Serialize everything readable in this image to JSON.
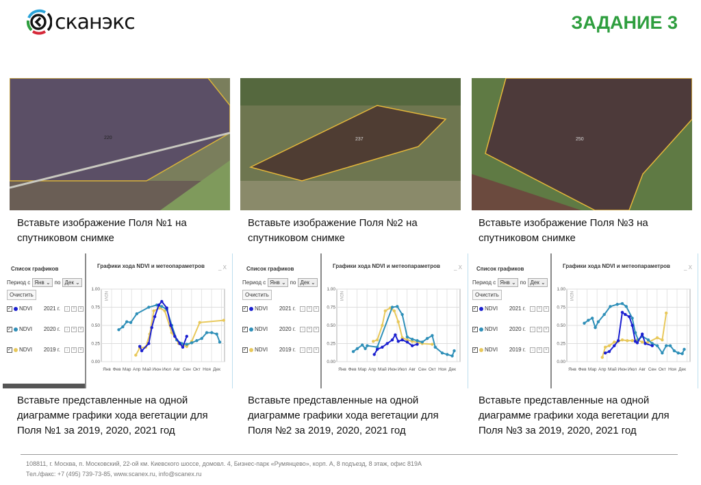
{
  "header": {
    "logo_text": "сканэкс",
    "title": "ЗАДАНИЕ 3"
  },
  "fields": [
    {
      "label": "220",
      "caption": "Вставьте изображение Поля №1 на спутниковом снимке",
      "chart_caption": "Вставьте представленные на одной диаграмме графики хода вегетации для Поля №1 за 2019, 2020, 2021 год"
    },
    {
      "label": "237",
      "caption": "Вставьте изображение Поля №2 на спутниковом снимке",
      "chart_caption": "Вставьте представленные на одной диаграмме графики хода вегетации для Поля №2 за 2019, 2020, 2021 год"
    },
    {
      "label": "250",
      "caption": "Вставьте изображение Поля №3 на спутниковом снимке",
      "chart_caption": "Вставьте представленные на одной диаграмме графики хода вегетации для Поля №3 за 2019, 2020, 2021 год"
    }
  ],
  "widget": {
    "list_title": "Список графиков",
    "period_from": "Период с",
    "from_value": "Янв",
    "to_label": "по",
    "to_value": "Дек",
    "clear_button": "Очистить",
    "chart_title": "Графики хода NDVI и метеопараметров",
    "minimize": "_",
    "close": "X",
    "rows": [
      {
        "name": "NDVI",
        "year": "2021 г.",
        "color": "#1a1fd0"
      },
      {
        "name": "NDVI",
        "year": "2020 г.",
        "color": "#2e8fb8"
      },
      {
        "name": "NDVI",
        "year": "2019 г.",
        "color": "#e8c85a"
      }
    ]
  },
  "chart_data": [
    {
      "type": "line",
      "title": "Графики хода NDVI и метеопараметров",
      "ylabel": "NDVI",
      "ylim": [
        0,
        1
      ],
      "yticks": [
        "0.00",
        "0.25",
        "0.50",
        "0.75",
        "1.00"
      ],
      "categories": [
        "Янв",
        "Фев",
        "Мар",
        "Апр",
        "Май",
        "Июн",
        "Июл",
        "Авг",
        "Сен",
        "Окт",
        "Ноя",
        "Дек"
      ],
      "series": [
        {
          "name": "2021",
          "color": "#1a1fd0",
          "points": [
            [
              3.3,
              0.21
            ],
            [
              3.5,
              0.15
            ],
            [
              4.2,
              0.25
            ],
            [
              4.5,
              0.47
            ],
            [
              4.8,
              0.62
            ],
            [
              5.2,
              0.78
            ],
            [
              5.5,
              0.83
            ],
            [
              6,
              0.74
            ],
            [
              6.4,
              0.5
            ],
            [
              6.8,
              0.35
            ],
            [
              7.3,
              0.25
            ],
            [
              7.6,
              0.2
            ],
            [
              8.0,
              0.35
            ]
          ]
        },
        {
          "name": "2020",
          "color": "#2e8fb8",
          "points": [
            [
              1.2,
              0.44
            ],
            [
              1.6,
              0.48
            ],
            [
              2.0,
              0.55
            ],
            [
              2.4,
              0.54
            ],
            [
              3.0,
              0.66
            ],
            [
              4.2,
              0.75
            ],
            [
              5.0,
              0.78
            ],
            [
              5.5,
              0.76
            ],
            [
              6.0,
              0.72
            ],
            [
              6.5,
              0.5
            ],
            [
              7,
              0.3
            ],
            [
              7.5,
              0.25
            ],
            [
              8,
              0.24
            ],
            [
              8.5,
              0.26
            ],
            [
              9,
              0.29
            ],
            [
              9.5,
              0.32
            ],
            [
              10,
              0.4
            ],
            [
              10.5,
              0.4
            ],
            [
              11,
              0.38
            ],
            [
              11.3,
              0.27
            ]
          ]
        },
        {
          "name": "2019",
          "color": "#e8c85a",
          "points": [
            [
              2.9,
              0.09
            ],
            [
              3.3,
              0.19
            ],
            [
              3.9,
              0.2
            ],
            [
              4.3,
              0.38
            ],
            [
              4.7,
              0.7
            ],
            [
              5.3,
              0.74
            ],
            [
              5.8,
              0.7
            ],
            [
              6.5,
              0.4
            ],
            [
              7.2,
              0.25
            ],
            [
              8,
              0.21
            ],
            [
              8.5,
              0.28
            ],
            [
              9.3,
              0.54
            ],
            [
              11.7,
              0.57
            ]
          ]
        }
      ]
    },
    {
      "type": "line",
      "title": "Графики хода NDVI и метеопараметров",
      "ylabel": "NDVI",
      "ylim": [
        0,
        1
      ],
      "yticks": [
        "0.00",
        "0.25",
        "0.50",
        "0.75",
        "1.00"
      ],
      "categories": [
        "Янв",
        "Фев",
        "Мар",
        "Апр",
        "Май",
        "Июн",
        "Июл",
        "Авг",
        "Сен",
        "Окт",
        "Ноя",
        "Дек"
      ],
      "series": [
        {
          "name": "2021",
          "color": "#1a1fd0",
          "points": [
            [
              3.2,
              0.1
            ],
            [
              3.5,
              0.17
            ],
            [
              4,
              0.2
            ],
            [
              4.5,
              0.25
            ],
            [
              5,
              0.3
            ],
            [
              5.3,
              0.37
            ],
            [
              5.6,
              0.28
            ],
            [
              6,
              0.3
            ],
            [
              6.5,
              0.27
            ],
            [
              7,
              0.22
            ],
            [
              7.5,
              0.24
            ]
          ]
        },
        {
          "name": "2020",
          "color": "#2e8fb8",
          "points": [
            [
              1.1,
              0.14
            ],
            [
              1.5,
              0.18
            ],
            [
              2,
              0.23
            ],
            [
              2.3,
              0.18
            ],
            [
              2.5,
              0.22
            ],
            [
              3.5,
              0.2
            ],
            [
              5.0,
              0.75
            ],
            [
              5.5,
              0.76
            ],
            [
              6,
              0.65
            ],
            [
              6.5,
              0.34
            ],
            [
              7,
              0.31
            ],
            [
              7.5,
              0.29
            ],
            [
              8,
              0.27
            ],
            [
              8.5,
              0.32
            ],
            [
              9,
              0.36
            ],
            [
              9.3,
              0.2
            ],
            [
              10,
              0.12
            ],
            [
              10.5,
              0.1
            ],
            [
              11,
              0.08
            ],
            [
              11.2,
              0.15
            ]
          ]
        },
        {
          "name": "2019",
          "color": "#e8c85a",
          "points": [
            [
              3.1,
              0.28
            ],
            [
              3.5,
              0.3
            ],
            [
              4,
              0.5
            ],
            [
              4.3,
              0.7
            ],
            [
              4.8,
              0.74
            ],
            [
              5.2,
              0.7
            ],
            [
              5.6,
              0.55
            ],
            [
              6,
              0.33
            ],
            [
              6.5,
              0.3
            ],
            [
              7,
              0.28
            ],
            [
              8,
              0.25
            ],
            [
              9,
              0.24
            ]
          ]
        }
      ]
    },
    {
      "type": "line",
      "title": "Графики хода NDVI и метеопараметров",
      "ylabel": "NDVI",
      "ylim": [
        0,
        1
      ],
      "yticks": [
        "0.00",
        "0.25",
        "0.50",
        "0.75",
        "1.00"
      ],
      "categories": [
        "Янв",
        "Фев",
        "Мар",
        "Апр",
        "Май",
        "Июн",
        "Июл",
        "Авг",
        "Сен",
        "Окт",
        "Ноя",
        "Дек"
      ],
      "series": [
        {
          "name": "2021",
          "color": "#1a1fd0",
          "points": [
            [
              3.3,
              0.12
            ],
            [
              3.7,
              0.14
            ],
            [
              4.2,
              0.22
            ],
            [
              4.6,
              0.29
            ],
            [
              5.0,
              0.68
            ],
            [
              5.3,
              0.65
            ],
            [
              5.7,
              0.62
            ],
            [
              6,
              0.5
            ],
            [
              6.3,
              0.28
            ],
            [
              6.5,
              0.26
            ],
            [
              7,
              0.38
            ],
            [
              7.3,
              0.25
            ],
            [
              8,
              0.22
            ]
          ]
        },
        {
          "name": "2020",
          "color": "#2e8fb8",
          "points": [
            [
              1.2,
              0.53
            ],
            [
              1.6,
              0.57
            ],
            [
              2,
              0.6
            ],
            [
              2.3,
              0.47
            ],
            [
              2.6,
              0.55
            ],
            [
              3.2,
              0.65
            ],
            [
              3.8,
              0.76
            ],
            [
              4.5,
              0.79
            ],
            [
              5,
              0.8
            ],
            [
              5.4,
              0.76
            ],
            [
              6,
              0.6
            ],
            [
              6.3,
              0.4
            ],
            [
              6.6,
              0.3
            ],
            [
              7,
              0.35
            ],
            [
              7.6,
              0.3
            ],
            [
              8,
              0.25
            ],
            [
              8.5,
              0.22
            ],
            [
              9,
              0.12
            ],
            [
              9.4,
              0.22
            ],
            [
              9.8,
              0.22
            ],
            [
              10.2,
              0.15
            ],
            [
              10.6,
              0.12
            ],
            [
              11,
              0.11
            ],
            [
              11.2,
              0.17
            ]
          ]
        },
        {
          "name": "2019",
          "color": "#e8c85a",
          "points": [
            [
              3.0,
              0.06
            ],
            [
              3.3,
              0.2
            ],
            [
              3.7,
              0.22
            ],
            [
              4.2,
              0.27
            ],
            [
              4.6,
              0.28
            ],
            [
              5,
              0.3
            ],
            [
              5.5,
              0.29
            ],
            [
              6,
              0.29
            ],
            [
              6.5,
              0.3
            ],
            [
              7,
              0.27
            ],
            [
              7.5,
              0.26
            ],
            [
              8.5,
              0.33
            ],
            [
              9,
              0.3
            ],
            [
              9.4,
              0.67
            ]
          ]
        }
      ]
    }
  ],
  "footer": {
    "address": "108811, г. Москва, п. Московский, 22-ой км. Киевского шоссе, домовл. 4, Бизнес-парк «Румянцево», корп. А, 8 подъезд, 8 этаж, офис 819А",
    "contacts": "Тел./факс: +7 (495) 739-73-85, www.scanex.ru, info@scanex.ru"
  }
}
